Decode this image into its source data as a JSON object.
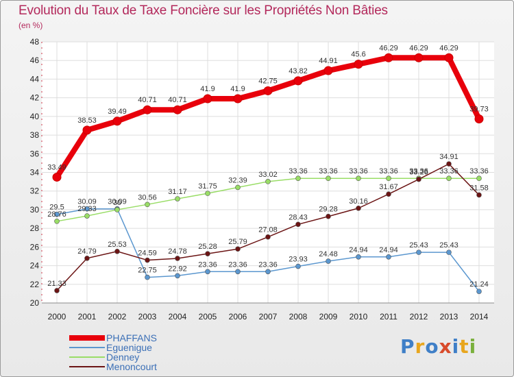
{
  "title": "Evolution du Taux de Taxe Foncière sur les Propriétés Non Bâties",
  "unit": "(en %)",
  "logo": {
    "text": "Proxiti",
    "colors": [
      "#3f7fc7",
      "#e8a61e",
      "#3f7fc7",
      "#d84b2b",
      "#3f7fc7",
      "#e8a61e",
      "#7ab03c"
    ]
  },
  "chart_data": {
    "type": "line",
    "title": "Evolution du Taux de Taxe Foncière sur les Propriétés Non Bâties",
    "ylabel": "(en %)",
    "xlabel": "",
    "ylim": [
      20,
      48
    ],
    "yticks": [
      20,
      22,
      24,
      26,
      28,
      30,
      32,
      34,
      36,
      38,
      40,
      42,
      44,
      46,
      48
    ],
    "categories": [
      "2000",
      "2001",
      "2002",
      "2003",
      "2004",
      "2005",
      "2006",
      "2007",
      "2008",
      "2009",
      "2010",
      "2011",
      "2012",
      "2013",
      "2014"
    ],
    "grid": true,
    "legend_position": "bottom-left",
    "series": [
      {
        "name": "PHAFFANS",
        "color": "#e8000b",
        "bold": true,
        "values": [
          33.49,
          38.53,
          39.49,
          40.71,
          40.71,
          41.9,
          41.9,
          42.75,
          43.82,
          44.91,
          45.6,
          46.29,
          46.29,
          46.29,
          39.73
        ],
        "labels": [
          "33.49",
          "38.53",
          "39.49",
          "40.71",
          "40.71",
          "41.9",
          "41.9",
          "42.75",
          "43.82",
          "44.91",
          "45.6",
          "46.29",
          "46.29",
          "46.29",
          "39.73"
        ]
      },
      {
        "name": "Eguenigue",
        "color": "#5b97cf",
        "bold": false,
        "values": [
          29.5,
          30.09,
          30.09,
          22.75,
          22.92,
          23.36,
          23.36,
          23.36,
          23.93,
          24.48,
          24.94,
          24.94,
          25.43,
          25.43,
          21.24
        ],
        "labels": [
          "29.5",
          "30.09",
          "30.09",
          "22.75",
          "22.92",
          "23.36",
          "23.36",
          "23.36",
          "23.93",
          "24.48",
          "24.94",
          "24.94",
          "25.43",
          "25.43",
          "21.24"
        ]
      },
      {
        "name": "Denney",
        "color": "#99dd66",
        "bold": false,
        "values": [
          28.76,
          29.33,
          30.0,
          30.56,
          31.17,
          31.75,
          32.39,
          33.02,
          33.36,
          33.36,
          33.36,
          33.36,
          33.36,
          33.36,
          33.36
        ],
        "labels": [
          "28.76",
          "29.33",
          "30",
          "30.56",
          "31.17",
          "31.75",
          "32.39",
          "33.02",
          "33.36",
          "33.36",
          "33.36",
          "33.36",
          "33.36",
          "33.36",
          "33.36"
        ]
      },
      {
        "name": "Menoncourt",
        "color": "#6b1414",
        "bold": false,
        "values": [
          21.33,
          24.79,
          25.53,
          24.59,
          24.78,
          25.28,
          25.79,
          27.08,
          28.43,
          29.28,
          30.16,
          31.67,
          33.26,
          34.91,
          31.58
        ],
        "labels": [
          "21.33",
          "24.79",
          "25.53",
          "24.59",
          "24.78",
          "25.28",
          "25.79",
          "27.08",
          "28.43",
          "29.28",
          "30.16",
          "31.67",
          "33.26",
          "34.91",
          "31.58"
        ]
      }
    ]
  }
}
